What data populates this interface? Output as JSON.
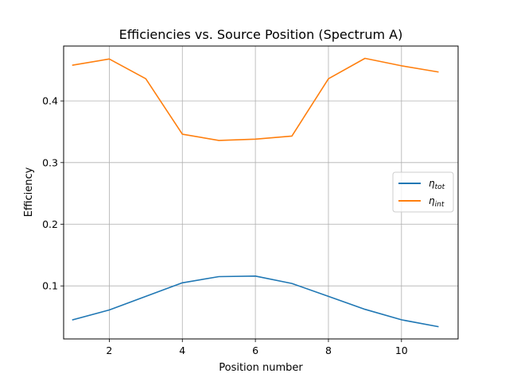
{
  "chart_data": {
    "type": "line",
    "title": "Efficiencies vs. Source Position (Spectrum A)",
    "xlabel": "Position number",
    "ylabel": "Efficiency",
    "x": [
      1,
      2,
      3,
      4,
      5,
      6,
      7,
      8,
      9,
      10,
      11
    ],
    "xlim": [
      0.75,
      11.55
    ],
    "ylim": [
      0.014,
      0.489
    ],
    "xticks": [
      2,
      4,
      6,
      8,
      10
    ],
    "yticks": [
      0.1,
      0.2,
      0.3,
      0.4
    ],
    "ytick_labels": [
      "0.1",
      "0.2",
      "0.3",
      "0.4"
    ],
    "grid": true,
    "legend_position": "center-right",
    "series": [
      {
        "name": "η_tot",
        "legend_symbol": "η",
        "legend_subscript": "tot",
        "color": "#1f77b4",
        "values": [
          0.045,
          0.061,
          0.083,
          0.105,
          0.115,
          0.116,
          0.104,
          0.083,
          0.062,
          0.045,
          0.034
        ]
      },
      {
        "name": "η_int",
        "legend_symbol": "η",
        "legend_subscript": "int",
        "color": "#ff7f0e",
        "values": [
          0.458,
          0.468,
          0.436,
          0.346,
          0.336,
          0.338,
          0.343,
          0.436,
          0.469,
          0.457,
          0.447
        ]
      }
    ]
  }
}
